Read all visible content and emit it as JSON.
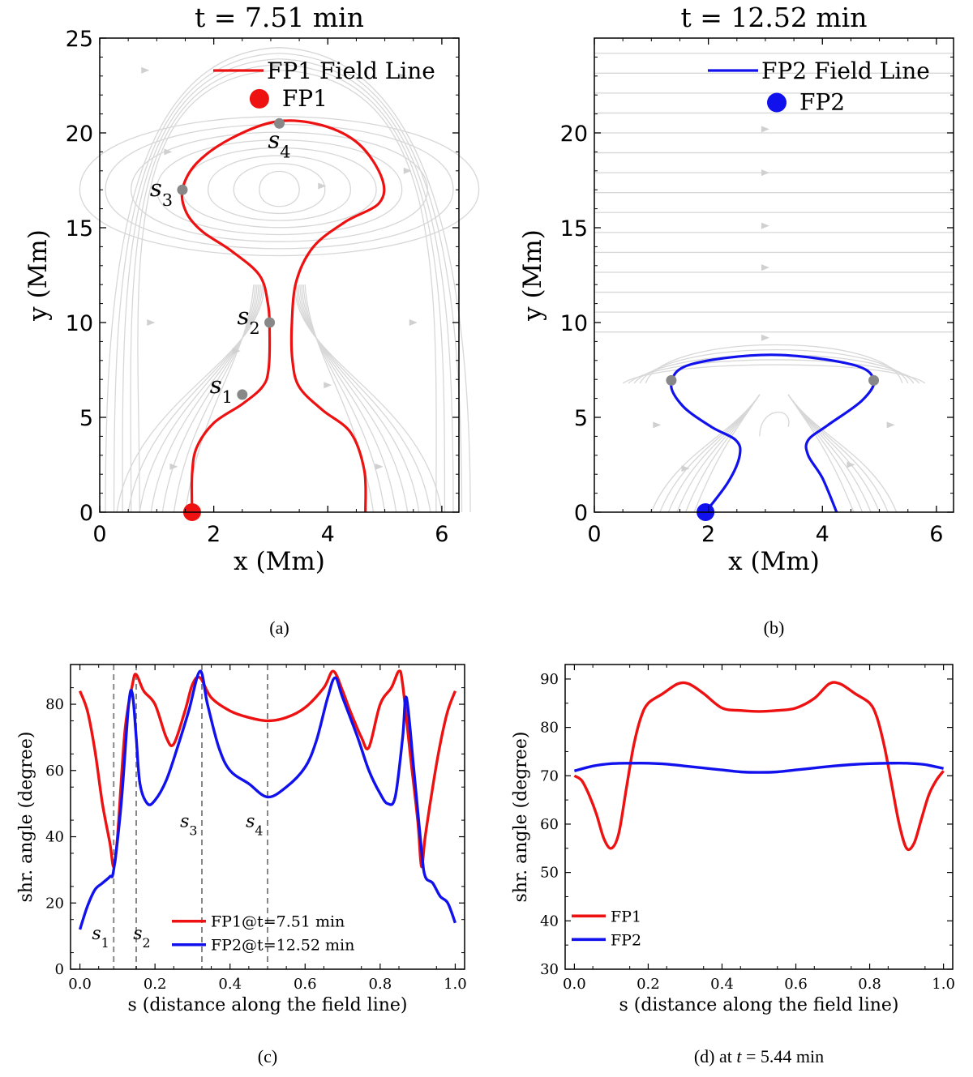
{
  "chart_data": [
    {
      "panel": "a",
      "type": "line",
      "title": "t = 7.51 min",
      "xlabel": "x (Mm)",
      "ylabel": "y (Mm)",
      "xlim": [
        0,
        6.3
      ],
      "ylim": [
        0,
        25
      ],
      "xticks": [
        0,
        2,
        4,
        6
      ],
      "yticks": [
        0,
        5,
        10,
        15,
        20,
        25
      ],
      "caption": "(a)",
      "legend": {
        "line": "FP1 Field Line",
        "point": "FP1"
      },
      "line_color": "#ee1111",
      "field_line": [
        [
          1.62,
          0
        ],
        [
          1.62,
          2
        ],
        [
          1.7,
          3.4
        ],
        [
          2.0,
          4.7
        ],
        [
          2.5,
          5.7
        ],
        [
          2.85,
          6.6
        ],
        [
          2.96,
          7.5
        ],
        [
          2.98,
          9.5
        ],
        [
          2.95,
          11
        ],
        [
          2.8,
          12.5
        ],
        [
          2.3,
          13.8
        ],
        [
          1.8,
          14.8
        ],
        [
          1.52,
          15.8
        ],
        [
          1.45,
          17
        ],
        [
          1.7,
          18.4
        ],
        [
          2.3,
          19.7
        ],
        [
          3.1,
          20.6
        ],
        [
          3.9,
          20.4
        ],
        [
          4.55,
          19.4
        ],
        [
          4.95,
          17.6
        ],
        [
          4.9,
          16.3
        ],
        [
          4.3,
          15.3
        ],
        [
          3.75,
          14
        ],
        [
          3.45,
          12.2
        ],
        [
          3.37,
          10
        ],
        [
          3.38,
          8
        ],
        [
          3.5,
          6.6
        ],
        [
          3.9,
          5.4
        ],
        [
          4.4,
          4.2
        ],
        [
          4.64,
          2.2
        ],
        [
          4.66,
          0
        ]
      ],
      "markers": [
        {
          "label": "s",
          "sub": "1",
          "x": 2.5,
          "y": 6.2
        },
        {
          "label": "s",
          "sub": "2",
          "x": 2.98,
          "y": 10
        },
        {
          "label": "s",
          "sub": "3",
          "x": 1.45,
          "y": 17
        },
        {
          "label": "s",
          "sub": "4",
          "x": 3.15,
          "y": 20.5
        }
      ],
      "footpoint": [
        1.62,
        0
      ],
      "legend_point": [
        2.8,
        21.8
      ]
    },
    {
      "panel": "b",
      "type": "line",
      "title": "t = 12.52 min",
      "xlabel": "x (Mm)",
      "ylabel": "y (Mm)",
      "xlim": [
        0,
        6.3
      ],
      "ylim": [
        0,
        25
      ],
      "xticks": [
        0,
        2,
        4,
        6
      ],
      "yticks": [
        0,
        5,
        10,
        15,
        20
      ],
      "caption": "(b)",
      "legend": {
        "line": "FP2 Field Line",
        "point": "FP2"
      },
      "line_color": "#1111ee",
      "field_line": [
        [
          1.95,
          0
        ],
        [
          2.35,
          1.6
        ],
        [
          2.55,
          3.0
        ],
        [
          2.48,
          3.8
        ],
        [
          2.05,
          4.5
        ],
        [
          1.55,
          5.6
        ],
        [
          1.35,
          6.8
        ],
        [
          1.7,
          7.8
        ],
        [
          3.1,
          8.3
        ],
        [
          4.5,
          7.8
        ],
        [
          4.9,
          7
        ],
        [
          4.7,
          5.9
        ],
        [
          4.1,
          4.6
        ],
        [
          3.75,
          3.8
        ],
        [
          3.75,
          3.0
        ],
        [
          4.0,
          1.8
        ],
        [
          4.25,
          0
        ]
      ],
      "markers": [
        [
          1.35,
          6.95
        ],
        [
          4.9,
          6.95
        ]
      ],
      "footpoint": [
        1.95,
        0
      ],
      "legend_point": [
        3.2,
        21.6
      ]
    },
    {
      "panel": "c",
      "type": "line",
      "xlabel": "s (distance along the field line)",
      "ylabel": "shr. angle (degree)",
      "xlim": [
        -0.025,
        1.025
      ],
      "ylim": [
        0,
        92
      ],
      "xticks": [
        0.0,
        0.2,
        0.4,
        0.6,
        0.8,
        1.0
      ],
      "xticklabels": [
        "0.0",
        "0.2",
        "0.4",
        "0.6",
        "0.8",
        "1.0"
      ],
      "yticks": [
        0,
        20,
        40,
        60,
        80
      ],
      "caption": "(c)",
      "vlines": [
        {
          "x": 0.09,
          "label": "s",
          "sub": "1"
        },
        {
          "x": 0.15,
          "label": "s",
          "sub": "2"
        },
        {
          "x": 0.325,
          "label": "s",
          "sub": "3"
        },
        {
          "x": 0.5,
          "label": "s",
          "sub": "4"
        }
      ],
      "series": [
        {
          "name": "FP1@t=7.51 min",
          "color": "#ee1111",
          "x": [
            0,
            0.02,
            0.04,
            0.06,
            0.08,
            0.09,
            0.1,
            0.12,
            0.14,
            0.15,
            0.17,
            0.2,
            0.23,
            0.25,
            0.28,
            0.3,
            0.32,
            0.35,
            0.4,
            0.45,
            0.5,
            0.55,
            0.6,
            0.65,
            0.675,
            0.7,
            0.72,
            0.75,
            0.77,
            0.8,
            0.83,
            0.85,
            0.86,
            0.88,
            0.9,
            0.91,
            0.92,
            0.94,
            0.96,
            0.98,
            1.0
          ],
          "values": [
            84,
            78,
            66,
            50,
            38,
            31,
            40,
            72,
            86,
            89,
            84,
            80,
            70,
            68,
            78,
            86,
            88,
            82,
            78,
            76,
            75,
            76,
            79,
            85,
            90,
            84,
            78,
            70,
            67,
            80,
            85,
            90,
            86,
            65,
            45,
            31,
            40,
            55,
            68,
            78,
            84
          ]
        },
        {
          "name": "FP2@t=12.52 min",
          "color": "#1111ee",
          "x": [
            0,
            0.02,
            0.04,
            0.06,
            0.08,
            0.09,
            0.11,
            0.13,
            0.14,
            0.15,
            0.16,
            0.18,
            0.2,
            0.23,
            0.26,
            0.29,
            0.32,
            0.34,
            0.37,
            0.4,
            0.45,
            0.5,
            0.55,
            0.6,
            0.63,
            0.66,
            0.68,
            0.7,
            0.74,
            0.77,
            0.8,
            0.82,
            0.84,
            0.86,
            0.87,
            0.89,
            0.91,
            0.92,
            0.94,
            0.96,
            0.98,
            1.0
          ],
          "values": [
            12,
            19,
            24,
            26,
            28,
            30,
            50,
            80,
            83,
            70,
            56,
            50,
            51,
            57,
            67,
            78,
            90,
            80,
            67,
            60,
            56,
            52,
            55,
            61,
            69,
            82,
            88,
            82,
            70,
            60,
            53,
            50,
            52,
            70,
            82,
            60,
            36,
            28,
            26,
            22,
            20,
            14
          ]
        }
      ]
    },
    {
      "panel": "d",
      "type": "line",
      "xlabel": "s (distance along the field line)",
      "ylabel": "shr. angle (degree)",
      "xlim": [
        -0.025,
        1.025
      ],
      "ylim": [
        30,
        93
      ],
      "xticks": [
        0.0,
        0.2,
        0.4,
        0.6,
        0.8,
        1.0
      ],
      "xticklabels": [
        "0.0",
        "0.2",
        "0.4",
        "0.6",
        "0.8",
        "1.0"
      ],
      "yticks": [
        30,
        40,
        50,
        60,
        70,
        80,
        90
      ],
      "caption_prefix": "(d) at ",
      "caption_var": "t",
      "caption_suffix": " = 5.44 min",
      "series": [
        {
          "name": "FP1",
          "color": "#ee1111",
          "x": [
            0,
            0.02,
            0.04,
            0.06,
            0.08,
            0.1,
            0.12,
            0.14,
            0.16,
            0.18,
            0.2,
            0.24,
            0.28,
            0.31,
            0.35,
            0.4,
            0.45,
            0.5,
            0.55,
            0.6,
            0.65,
            0.69,
            0.72,
            0.76,
            0.8,
            0.82,
            0.84,
            0.86,
            0.88,
            0.9,
            0.92,
            0.94,
            0.96,
            0.98,
            1.0
          ],
          "values": [
            70,
            69,
            66,
            62,
            57,
            55,
            58,
            67,
            76,
            82,
            85,
            87,
            89,
            89,
            87,
            84,
            83.5,
            83.3,
            83.5,
            84,
            86,
            89,
            89,
            87,
            85,
            82,
            76,
            68,
            60,
            55,
            56,
            61,
            66,
            69,
            71
          ]
        },
        {
          "name": "FP2",
          "color": "#1111ee",
          "x": [
            0,
            0.05,
            0.1,
            0.15,
            0.2,
            0.25,
            0.3,
            0.35,
            0.4,
            0.45,
            0.5,
            0.55,
            0.6,
            0.65,
            0.7,
            0.75,
            0.8,
            0.85,
            0.9,
            0.95,
            1.0
          ],
          "values": [
            71,
            72,
            72.5,
            72.6,
            72.6,
            72.4,
            72,
            71.6,
            71.2,
            70.8,
            70.7,
            70.8,
            71.2,
            71.6,
            72,
            72.3,
            72.5,
            72.6,
            72.6,
            72.3,
            71.5
          ]
        }
      ]
    }
  ]
}
